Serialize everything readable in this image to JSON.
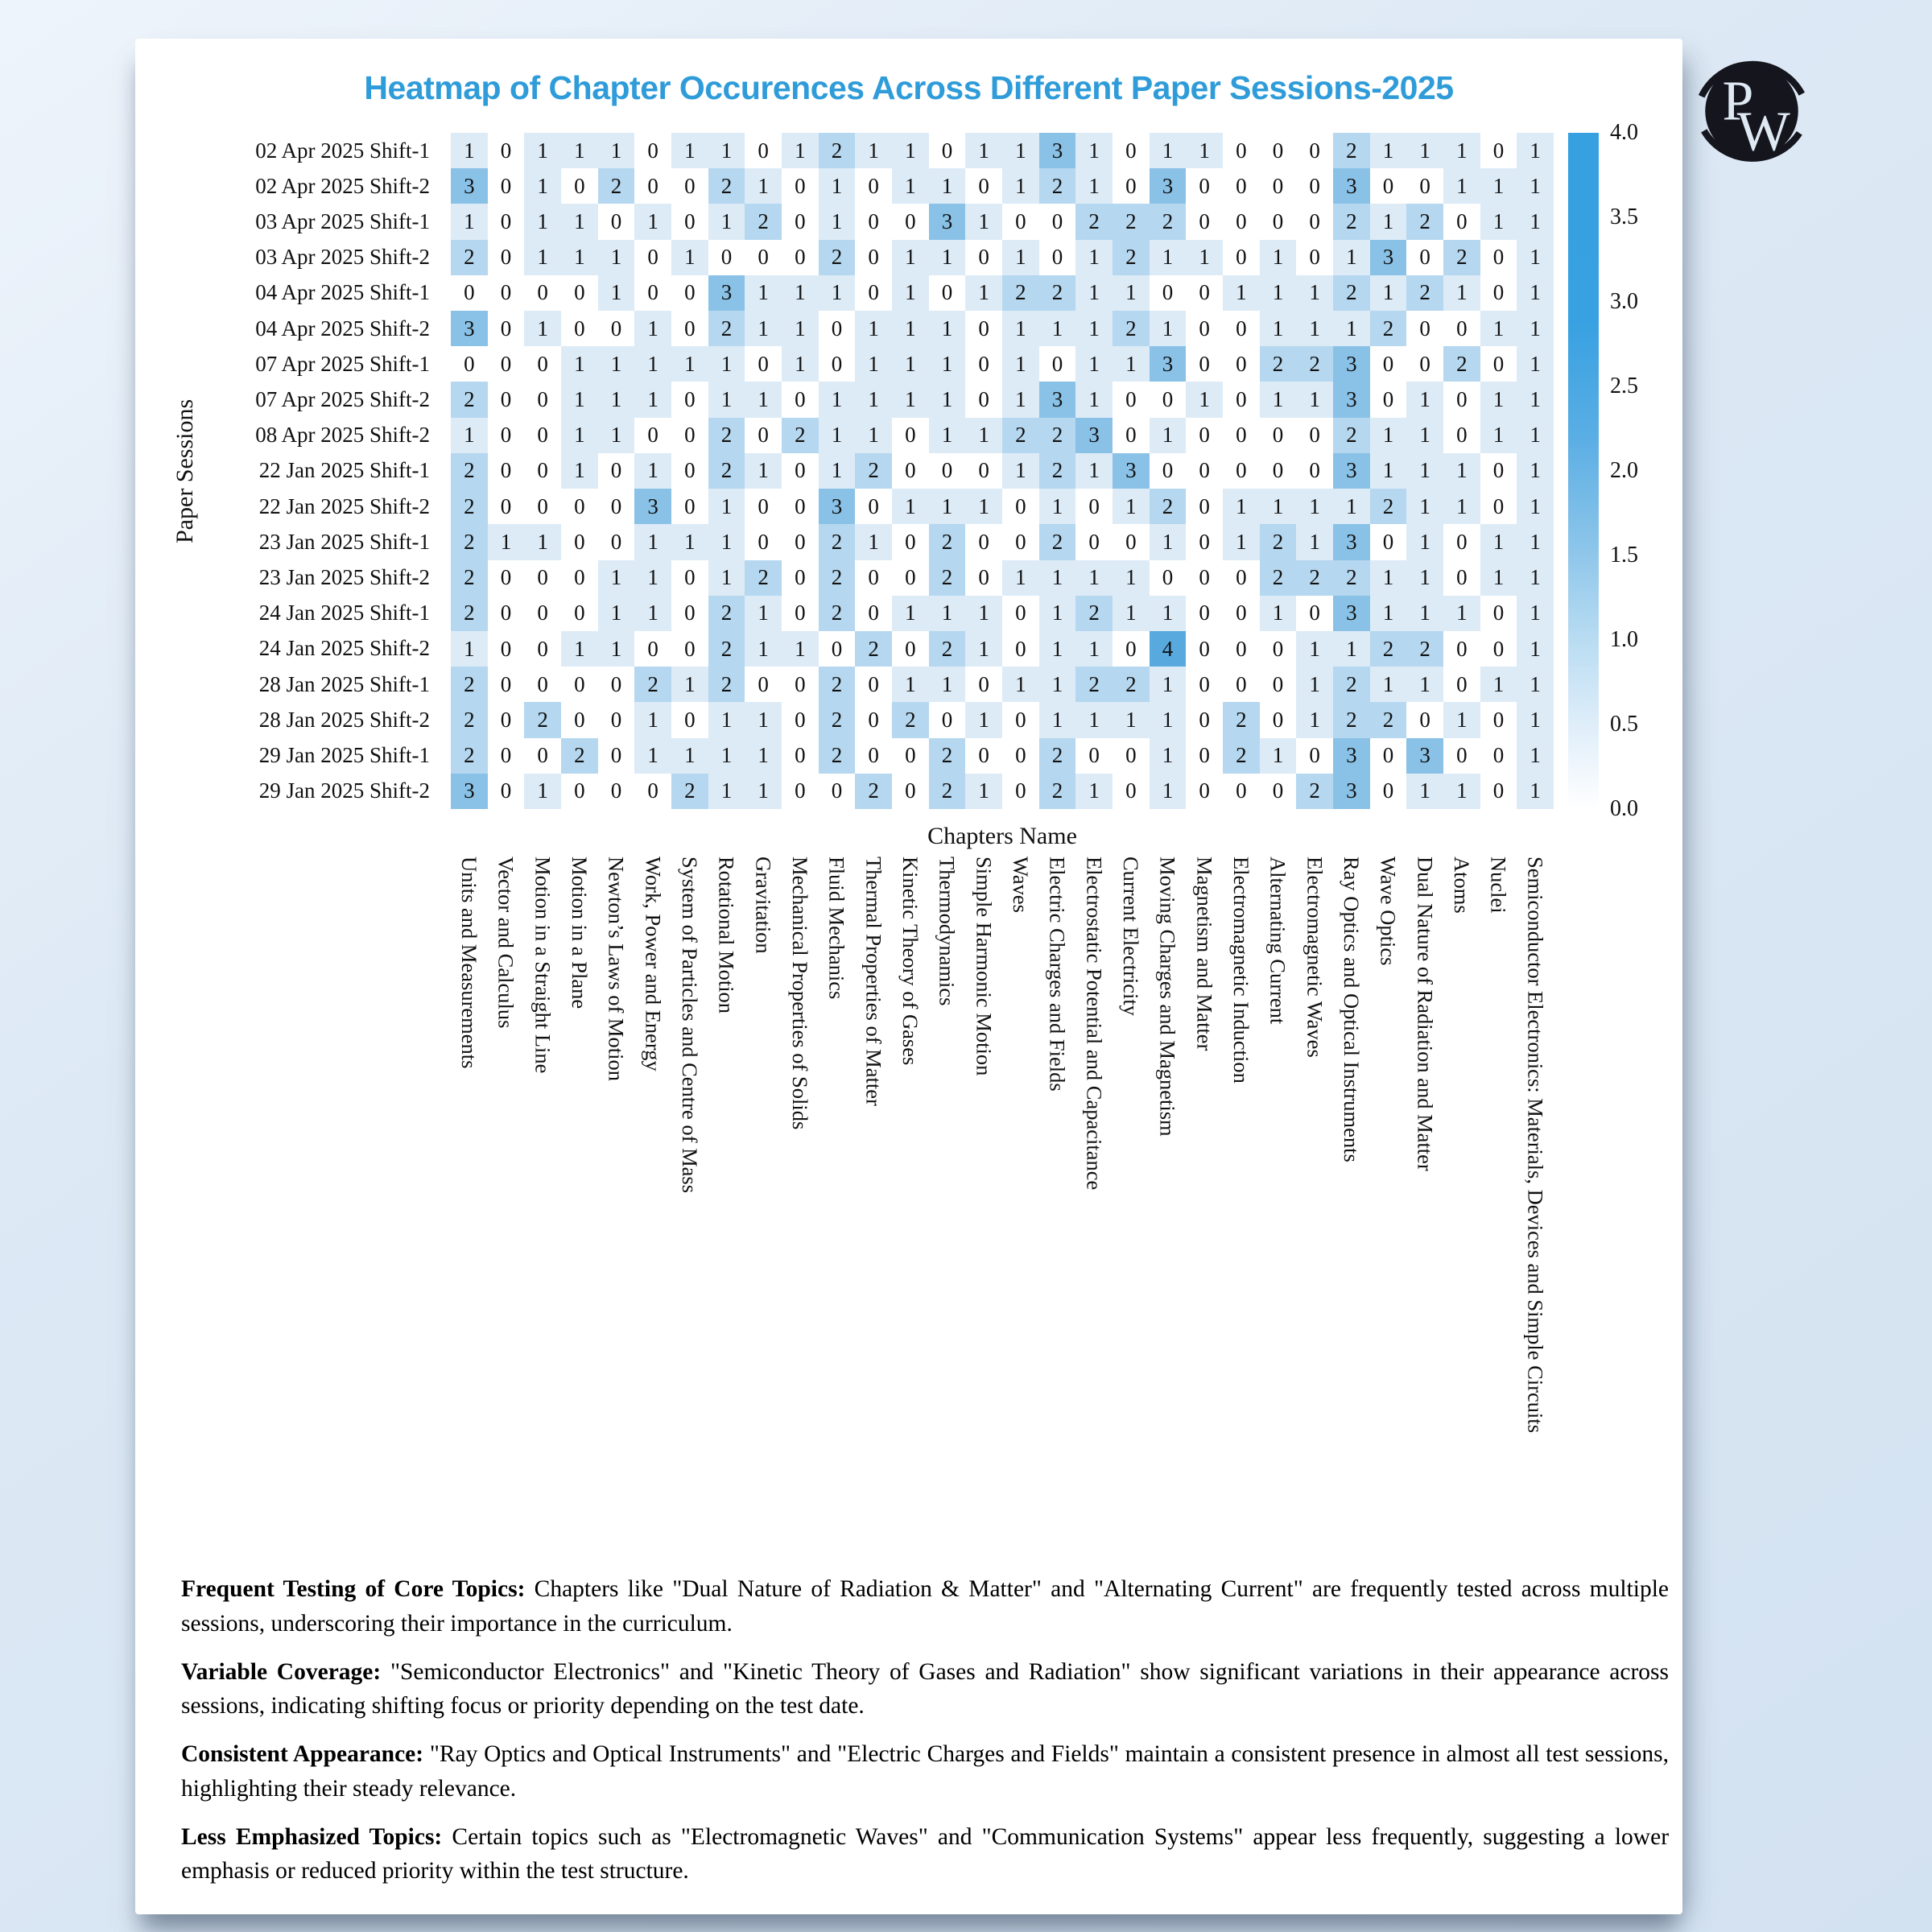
{
  "chart_data": {
    "type": "heatmap",
    "title": "Heatmap of Chapter Occurences Across Different Paper Sessions-2025",
    "xlabel": "Chapters Name",
    "ylabel": "Paper Sessions",
    "rows": [
      "02 Apr 2025 Shift-1",
      "02 Apr 2025 Shift-2",
      "03 Apr 2025 Shift-1",
      "03 Apr 2025 Shift-2",
      "04 Apr 2025 Shift-1",
      "04 Apr 2025 Shift-2",
      "07 Apr 2025 Shift-1",
      "07 Apr 2025 Shift-2",
      "08 Apr 2025 Shift-2",
      "22 Jan 2025 Shift-1",
      "22 Jan 2025 Shift-2",
      "23 Jan 2025 Shift-1",
      "23 Jan 2025 Shift-2",
      "24 Jan 2025 Shift-1",
      "24 Jan 2025 Shift-2",
      "28 Jan 2025 Shift-1",
      "28 Jan 2025 Shift-2",
      "29 Jan 2025 Shift-1",
      "29 Jan 2025 Shift-2"
    ],
    "columns": [
      "Units and Measurements",
      "Vector and Calculus",
      "Motion in a Straight Line",
      "Motion in a Plane",
      "Newton’s Laws of Motion",
      "Work, Power and Energy",
      "System of Particles and Centre of Mass",
      "Rotational Motion",
      "Gravitation",
      "Mechanical Properties of Solids",
      "Fluid Mechanics",
      "Thermal Properties of Matter",
      "Kinetic Theory of Gases",
      "Thermodynamics",
      "Simple Harmonic Motion",
      "Waves",
      "Electric Charges and Fields",
      "Electrostatic Potential and Capacitance",
      "Current Electricity",
      "Moving Charges and Magnetism",
      "Magnetism and Matter",
      "Electromagnetic Induction",
      "Alternating Current",
      "Electromagnetic Waves",
      "Ray Optics and Optical Instruments",
      "Wave Optics",
      "Dual Nature of Radiation and Matter",
      "Atoms",
      "Nuclei",
      "Semiconductor Electronics: Materials, Devices and Simple Circuits"
    ],
    "values": [
      [
        1,
        0,
        1,
        1,
        1,
        0,
        1,
        1,
        0,
        1,
        2,
        1,
        1,
        0,
        1,
        1,
        3,
        1,
        0,
        1,
        1,
        0,
        0,
        0,
        2,
        1,
        1,
        1,
        0,
        1
      ],
      [
        3,
        0,
        1,
        0,
        2,
        0,
        0,
        2,
        1,
        0,
        1,
        0,
        1,
        1,
        0,
        1,
        2,
        1,
        0,
        3,
        0,
        0,
        0,
        0,
        3,
        0,
        0,
        1,
        1,
        1
      ],
      [
        1,
        0,
        1,
        1,
        0,
        1,
        0,
        1,
        2,
        0,
        1,
        0,
        0,
        3,
        1,
        0,
        0,
        2,
        2,
        2,
        0,
        0,
        0,
        0,
        2,
        1,
        2,
        0,
        1,
        1
      ],
      [
        2,
        0,
        1,
        1,
        1,
        0,
        1,
        0,
        0,
        0,
        2,
        0,
        1,
        1,
        0,
        1,
        0,
        1,
        2,
        1,
        1,
        0,
        1,
        0,
        1,
        3,
        0,
        2,
        0,
        1
      ],
      [
        0,
        0,
        0,
        0,
        1,
        0,
        0,
        3,
        1,
        1,
        1,
        0,
        1,
        0,
        1,
        2,
        2,
        1,
        1,
        0,
        0,
        1,
        1,
        1,
        2,
        1,
        2,
        1,
        0,
        1
      ],
      [
        3,
        0,
        1,
        0,
        0,
        1,
        0,
        2,
        1,
        1,
        0,
        1,
        1,
        1,
        0,
        1,
        1,
        1,
        2,
        1,
        0,
        0,
        1,
        1,
        1,
        2,
        0,
        0,
        1,
        1
      ],
      [
        0,
        0,
        0,
        1,
        1,
        1,
        1,
        1,
        0,
        1,
        0,
        1,
        1,
        1,
        0,
        1,
        0,
        1,
        1,
        3,
        0,
        0,
        2,
        2,
        3,
        0,
        0,
        2,
        0,
        1
      ],
      [
        2,
        0,
        0,
        1,
        1,
        1,
        0,
        1,
        1,
        0,
        1,
        1,
        1,
        1,
        0,
        1,
        3,
        1,
        0,
        0,
        1,
        0,
        1,
        1,
        3,
        0,
        1,
        0,
        1,
        1
      ],
      [
        1,
        0,
        0,
        1,
        1,
        0,
        0,
        2,
        0,
        2,
        1,
        1,
        0,
        1,
        1,
        2,
        2,
        3,
        0,
        1,
        0,
        0,
        0,
        0,
        2,
        1,
        1,
        0,
        1,
        1
      ],
      [
        2,
        0,
        0,
        1,
        0,
        1,
        0,
        2,
        1,
        0,
        1,
        2,
        0,
        0,
        0,
        1,
        2,
        1,
        3,
        0,
        0,
        0,
        0,
        0,
        3,
        1,
        1,
        1,
        0,
        1
      ],
      [
        2,
        0,
        0,
        0,
        0,
        3,
        0,
        1,
        0,
        0,
        3,
        0,
        1,
        1,
        1,
        0,
        1,
        0,
        1,
        2,
        0,
        1,
        1,
        1,
        1,
        2,
        1,
        1,
        0,
        1
      ],
      [
        2,
        1,
        1,
        0,
        0,
        1,
        1,
        1,
        0,
        0,
        2,
        1,
        0,
        2,
        0,
        0,
        2,
        0,
        0,
        1,
        0,
        1,
        2,
        1,
        3,
        0,
        1,
        0,
        1,
        1
      ],
      [
        2,
        0,
        0,
        0,
        1,
        1,
        0,
        1,
        2,
        0,
        2,
        0,
        0,
        2,
        0,
        1,
        1,
        1,
        1,
        0,
        0,
        0,
        2,
        2,
        2,
        1,
        1,
        0,
        1,
        1
      ],
      [
        2,
        0,
        0,
        0,
        1,
        1,
        0,
        2,
        1,
        0,
        2,
        0,
        1,
        1,
        1,
        0,
        1,
        2,
        1,
        1,
        0,
        0,
        1,
        0,
        3,
        1,
        1,
        1,
        0,
        1
      ],
      [
        1,
        0,
        0,
        1,
        1,
        0,
        0,
        2,
        1,
        1,
        0,
        2,
        0,
        2,
        1,
        0,
        1,
        1,
        0,
        4,
        0,
        0,
        0,
        1,
        1,
        2,
        2,
        0,
        0,
        1
      ],
      [
        2,
        0,
        0,
        0,
        0,
        2,
        1,
        2,
        0,
        0,
        2,
        0,
        1,
        1,
        0,
        1,
        1,
        2,
        2,
        1,
        0,
        0,
        0,
        1,
        2,
        1,
        1,
        0,
        1,
        1
      ],
      [
        2,
        0,
        2,
        0,
        0,
        1,
        0,
        1,
        1,
        0,
        2,
        0,
        2,
        0,
        1,
        0,
        1,
        1,
        1,
        1,
        0,
        2,
        0,
        1,
        2,
        2,
        0,
        1,
        0,
        1
      ],
      [
        2,
        0,
        0,
        2,
        0,
        1,
        1,
        1,
        1,
        0,
        2,
        0,
        0,
        2,
        0,
        0,
        2,
        0,
        0,
        1,
        0,
        2,
        1,
        0,
        3,
        0,
        3,
        0,
        0,
        1
      ],
      [
        3,
        0,
        1,
        0,
        0,
        0,
        2,
        1,
        1,
        0,
        0,
        2,
        0,
        2,
        1,
        0,
        2,
        1,
        0,
        1,
        0,
        0,
        0,
        2,
        3,
        0,
        1,
        1,
        0,
        1
      ]
    ],
    "value_colors": {
      "0": "#ffffff",
      "1": "#ddebf7",
      "2": "#b5d7ef",
      "3": "#8ac2e7",
      "4": "#57a9de"
    },
    "colorbar": {
      "min": 0.0,
      "max": 4.0,
      "ticks": [
        "4.0",
        "3.5",
        "3.0",
        "2.5",
        "2.0",
        "1.5",
        "1.0",
        "0.5",
        "0.0"
      ]
    },
    "legend_position": "right",
    "grid": false,
    "title_color": "#2f9cd9"
  },
  "insights": [
    {
      "label": "Frequent Testing of Core Topics:",
      "text": "Chapters like \"Dual Nature of Radiation & Matter\" and \"Alternating Current\" are frequently tested across multiple sessions, underscoring their importance in the curriculum."
    },
    {
      "label": "Variable Coverage:",
      "text": "\"Semiconductor Electronics\" and \"Kinetic Theory of Gases and Radiation\" show significant variations in their appearance across sessions, indicating shifting focus or priority depending on the test date."
    },
    {
      "label": "Consistent Appearance:",
      "text": "\"Ray Optics and Optical Instruments\" and \"Electric Charges and Fields\" maintain a consistent presence in almost all test sessions, highlighting their steady relevance."
    },
    {
      "label": "Less Emphasized Topics:",
      "text": "Certain topics such as \"Electromagnetic Waves\" and \"Communication Systems\" appear less frequently, suggesting a lower emphasis or reduced priority within the test structure."
    }
  ],
  "logo": {
    "letter_p": "P",
    "letter_w": "W"
  }
}
